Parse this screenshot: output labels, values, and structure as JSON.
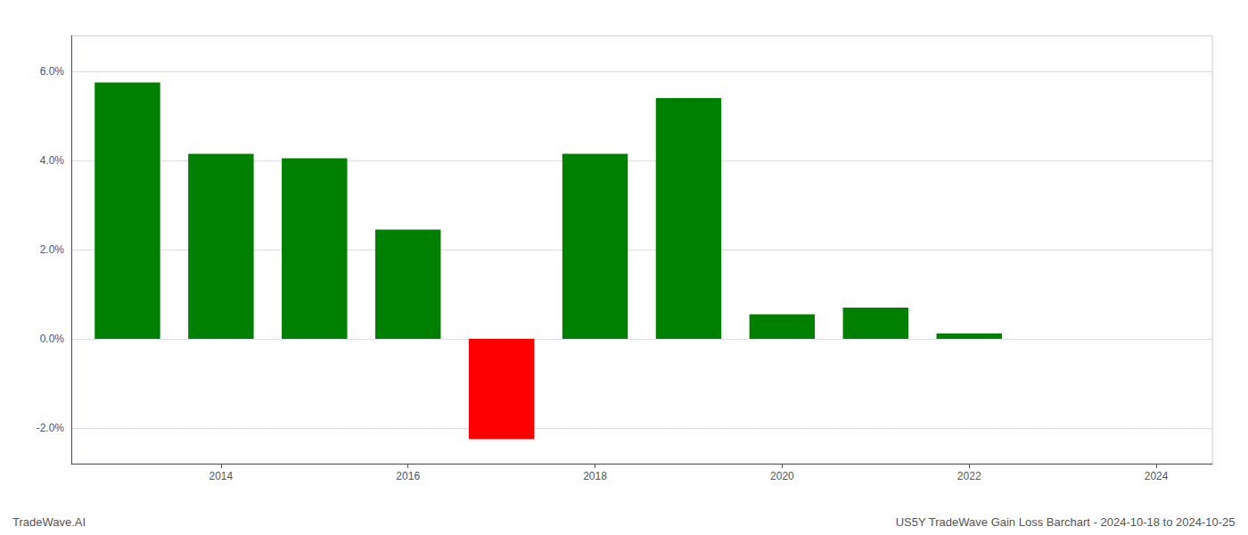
{
  "chart_data": {
    "type": "bar",
    "x": [
      2013,
      2014,
      2015,
      2016,
      2017,
      2018,
      2019,
      2020,
      2021,
      2022,
      2023
    ],
    "values": [
      0.0575,
      0.0415,
      0.0405,
      0.0245,
      -0.0225,
      0.0415,
      0.054,
      0.0055,
      0.007,
      0.0012,
      0.0
    ],
    "colors": [
      "#008000",
      "#008000",
      "#008000",
      "#008000",
      "#ff0000",
      "#008000",
      "#008000",
      "#008000",
      "#008000",
      "#008000",
      "#008000"
    ],
    "xlim": [
      2012.4,
      2024.6
    ],
    "xticks": [
      2014,
      2016,
      2018,
      2020,
      2022,
      2024
    ],
    "ylim": [
      -0.028,
      0.068
    ],
    "yticks": [
      {
        "value": -0.02,
        "label": "-2.0%"
      },
      {
        "value": 0.0,
        "label": "0.0%"
      },
      {
        "value": 0.02,
        "label": "2.0%"
      },
      {
        "value": 0.04,
        "label": "4.0%"
      },
      {
        "value": 0.06,
        "label": "6.0%"
      }
    ],
    "grid": true,
    "annotations": [
      "TradeWave.AI",
      "US5Y TradeWave Gain Loss Barchart - 2024-10-18 to 2024-10-25"
    ]
  }
}
